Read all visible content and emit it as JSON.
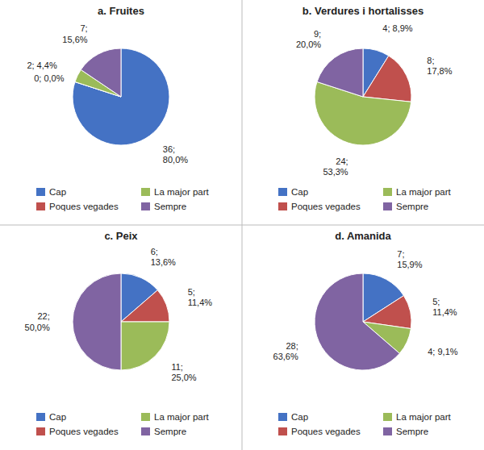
{
  "chart_data": [
    {
      "type": "pie",
      "title": "a. Fruites",
      "categories": [
        "Cap",
        "Poques vegades",
        "La major part",
        "Sempre"
      ],
      "values": [
        36,
        0,
        2,
        7
      ],
      "value_labels": [
        "36;\n80,0%",
        "0; 0,0%",
        "2; 4,4%",
        "7;\n15,6%"
      ],
      "colors": [
        "#4472C4",
        "#C0504D",
        "#9BBB59",
        "#8064A2"
      ],
      "data_labels": true,
      "legend": "bottom"
    },
    {
      "type": "pie",
      "title": "b. Verdures i hortalisses",
      "categories": [
        "Cap",
        "Poques vegades",
        "La major part",
        "Sempre"
      ],
      "values": [
        4,
        8,
        24,
        9
      ],
      "value_labels": [
        "4; 8,9%",
        "8;\n17,8%",
        "24;\n53,3%",
        "9;\n20,0%"
      ],
      "colors": [
        "#4472C4",
        "#C0504D",
        "#9BBB59",
        "#8064A2"
      ],
      "data_labels": true,
      "legend": "bottom"
    },
    {
      "type": "pie",
      "title": "c. Peix",
      "categories": [
        "Cap",
        "Poques vegades",
        "La major part",
        "Sempre"
      ],
      "values": [
        6,
        5,
        11,
        22
      ],
      "value_labels": [
        "6;\n13,6%",
        "5;\n11,4%",
        "11;\n25,0%",
        "22;\n50,0%"
      ],
      "colors": [
        "#4472C4",
        "#C0504D",
        "#9BBB59",
        "#8064A2"
      ],
      "data_labels": true,
      "legend": "bottom"
    },
    {
      "type": "pie",
      "title": "d. Amanida",
      "categories": [
        "Cap",
        "Poques vegades",
        "La major part",
        "Sempre"
      ],
      "values": [
        7,
        5,
        4,
        28
      ],
      "value_labels": [
        "7;\n15,9%",
        "5;\n11,4%",
        "4; 9,1%",
        "28;\n63,6%"
      ],
      "colors": [
        "#4472C4",
        "#C0504D",
        "#9BBB59",
        "#8064A2"
      ],
      "data_labels": true,
      "legend": "bottom"
    }
  ]
}
